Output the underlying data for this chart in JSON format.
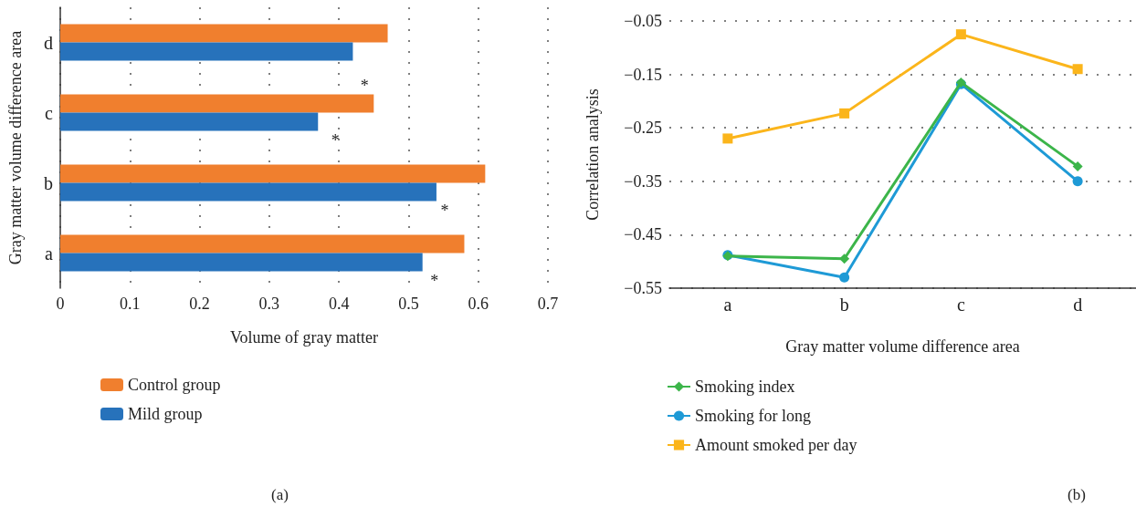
{
  "chart_data": [
    {
      "type": "bar",
      "orientation": "horizontal",
      "xlabel": "Volume of gray matter",
      "ylabel": "Gray matter volume difference area",
      "categories": [
        "d",
        "c",
        "b",
        "a"
      ],
      "series": [
        {
          "name": "Control group",
          "color": "#f07f2e",
          "values": [
            0.47,
            0.45,
            0.61,
            0.58
          ]
        },
        {
          "name": "Mild group",
          "color": "#2772bb",
          "values": [
            0.42,
            0.37,
            0.54,
            0.52
          ]
        }
      ],
      "xlim": [
        0,
        0.7
      ],
      "xticks": [
        0,
        0.1,
        0.2,
        0.3,
        0.4,
        0.5,
        0.6,
        0.7
      ],
      "grid": "x",
      "legend": "bottom left",
      "annotations": [
        {
          "text": "*",
          "x": 0.537,
          "y": "a"
        },
        {
          "text": "*",
          "x": 0.552,
          "y": "b"
        },
        {
          "text": "*",
          "x": 0.395,
          "y": "c"
        },
        {
          "text": "*",
          "x": 0.437,
          "y": "c"
        },
        "(a)"
      ]
    },
    {
      "type": "line",
      "xlabel": "Gray matter volume difference area",
      "ylabel": "Correlation analysis",
      "categories": [
        "a",
        "b",
        "c",
        "d"
      ],
      "series": [
        {
          "name": "Smoking index",
          "color": "#3cb54a",
          "marker": "diamond",
          "values": [
            -0.49,
            -0.495,
            -0.165,
            -0.322
          ]
        },
        {
          "name": "Smoking for long",
          "color": "#1e9ad6",
          "marker": "circle",
          "values": [
            -0.488,
            -0.53,
            -0.168,
            -0.35
          ]
        },
        {
          "name": "Amount smoked per day",
          "color": "#fbb51b",
          "marker": "square",
          "values": [
            -0.27,
            -0.223,
            -0.075,
            -0.14
          ]
        }
      ],
      "ylim": [
        -0.55,
        -0.05
      ],
      "yticks": [
        -0.55,
        -0.45,
        -0.35,
        -0.25,
        -0.15,
        -0.05
      ],
      "grid": "y",
      "legend": "bottom left",
      "line_style": "solid",
      "annotations": [
        "(b)"
      ]
    }
  ]
}
